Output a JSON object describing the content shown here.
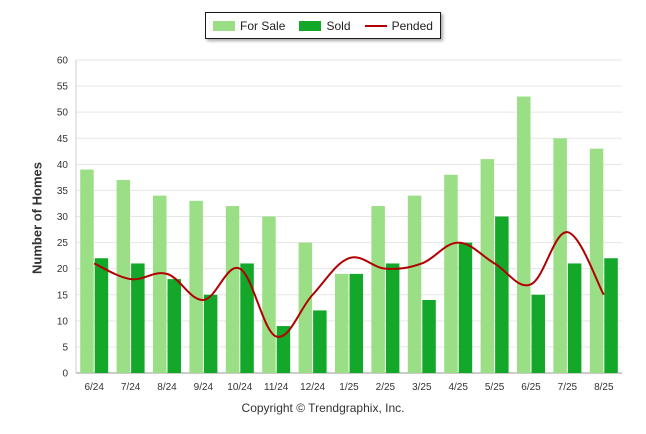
{
  "chart_data": {
    "type": "bar",
    "categories": [
      "6/24",
      "7/24",
      "8/24",
      "9/24",
      "10/24",
      "11/24",
      "12/24",
      "1/25",
      "2/25",
      "3/25",
      "4/25",
      "5/25",
      "6/25",
      "7/25",
      "8/25"
    ],
    "series": [
      {
        "name": "For Sale",
        "type": "bar",
        "color": "#9adf85",
        "values": [
          39,
          37,
          34,
          33,
          32,
          30,
          25,
          19,
          32,
          34,
          38,
          41,
          53,
          45,
          43
        ]
      },
      {
        "name": "Sold",
        "type": "bar",
        "color": "#14a82a",
        "values": [
          22,
          21,
          18,
          15,
          21,
          9,
          12,
          19,
          21,
          14,
          25,
          30,
          15,
          21,
          22
        ]
      },
      {
        "name": "Pended",
        "type": "line",
        "color": "#b00000",
        "values": [
          21,
          18,
          19,
          14,
          20,
          7,
          15,
          22,
          20,
          21,
          25,
          21,
          17,
          27,
          15
        ]
      }
    ],
    "title": "",
    "xlabel": "",
    "ylabel": "Number of Homes",
    "ylim": [
      0,
      60
    ],
    "yticks": [
      0,
      5,
      10,
      15,
      20,
      25,
      30,
      35,
      40,
      45,
      50,
      55,
      60
    ],
    "grid": true,
    "legend": "top-center"
  },
  "footer": "Copyright © Trendgraphix, Inc."
}
